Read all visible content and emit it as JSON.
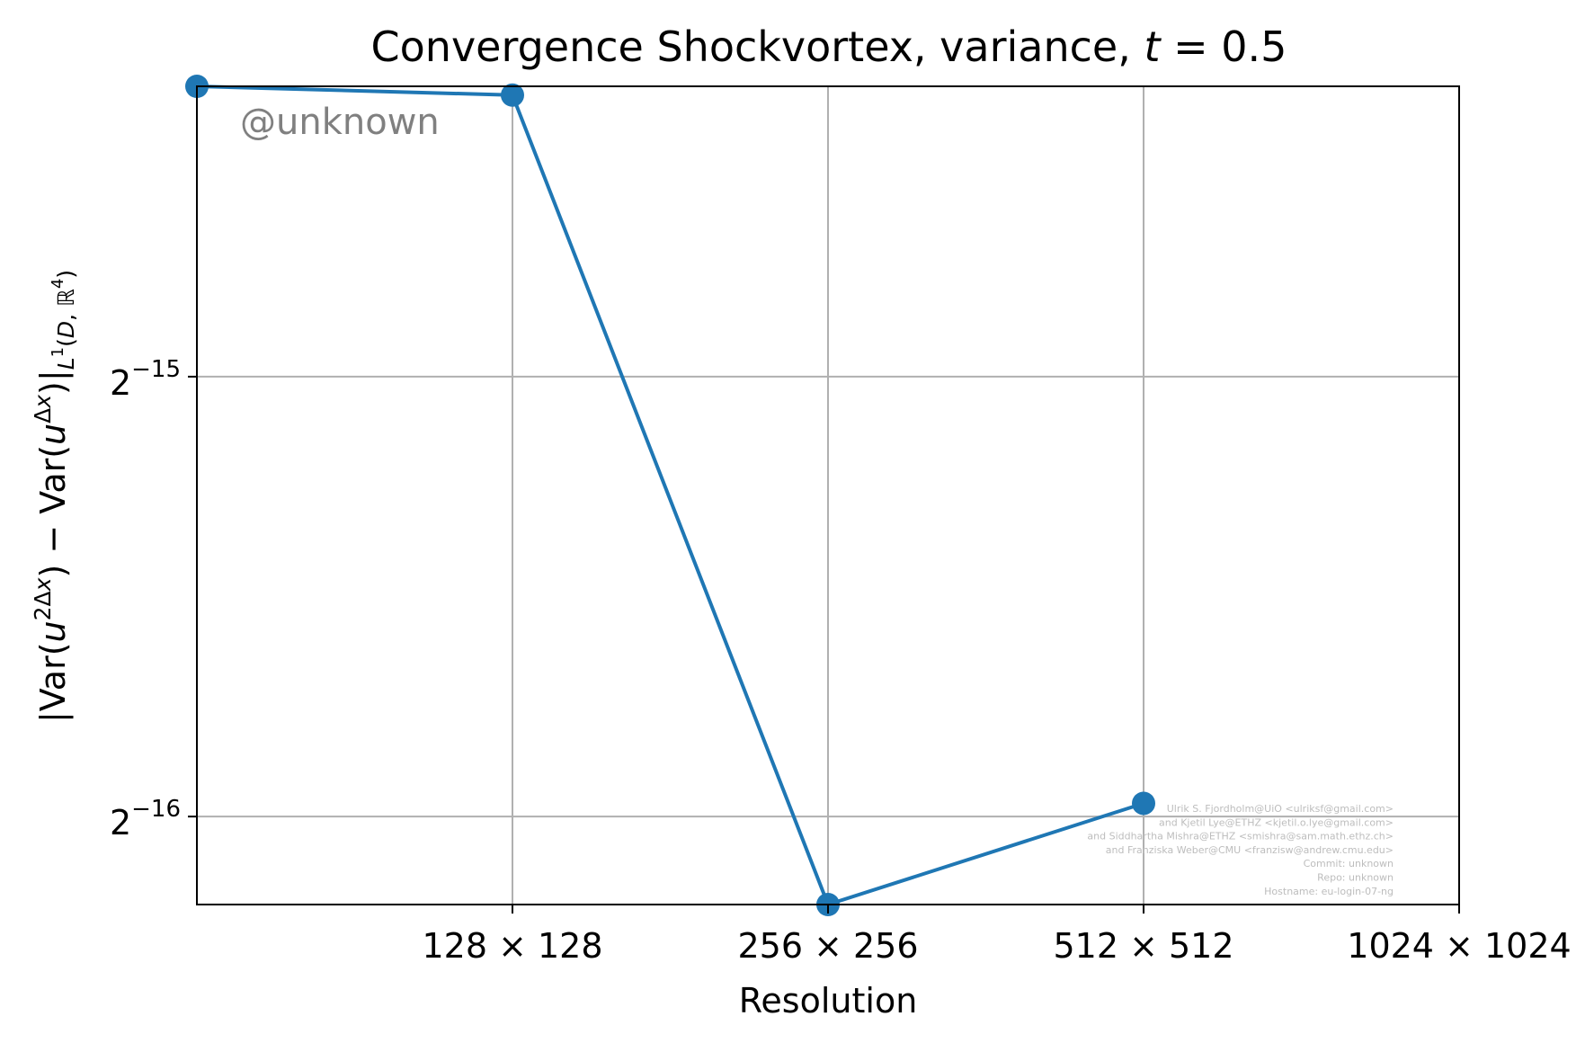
{
  "chart_data": {
    "type": "line",
    "title": "Convergence Shockvortex, variance, t = 0.5",
    "xlabel": "Resolution",
    "ylabel": "|Var(u^{2Δx}) − Var(u^{Δx})|_{L¹(D, ℝ⁴)}",
    "x_scale": "log2",
    "y_scale": "log2",
    "x": [
      64,
      128,
      256,
      512
    ],
    "x_tick_values": [
      128,
      256,
      512,
      1024
    ],
    "x_tick_labels": [
      "128 × 128",
      "256 × 256",
      "512 × 512",
      "1024 × 1024"
    ],
    "xlim": [
      64,
      1024
    ],
    "y_tick_values": [
      -15,
      -16
    ],
    "y_tick_labels": [
      {
        "base": "2",
        "exp": "−15"
      },
      {
        "base": "2",
        "exp": "−16"
      }
    ],
    "ylim_log2": [
      -16.2,
      -14.34
    ],
    "series": [
      {
        "values_log2": [
          -14.34,
          -14.36,
          -16.2,
          -15.97
        ],
        "color": "#1f77b4"
      }
    ],
    "grid": true,
    "watermark": "@unknown",
    "credits": [
      "Ulrik S. Fjordholm@UiO <ulriksf@gmail.com>",
      "and Kjetil Lye@ETHZ <kjetil.o.lye@gmail.com>",
      "and Siddhartha Mishra@ETHZ <smishra@sam.math.ethz.ch>",
      "and Franziska Weber@CMU <franzisw@andrew.cmu.edu>",
      "Commit: unknown",
      "Repo: unknown",
      "Hostname: eu-login-07-ng"
    ]
  }
}
